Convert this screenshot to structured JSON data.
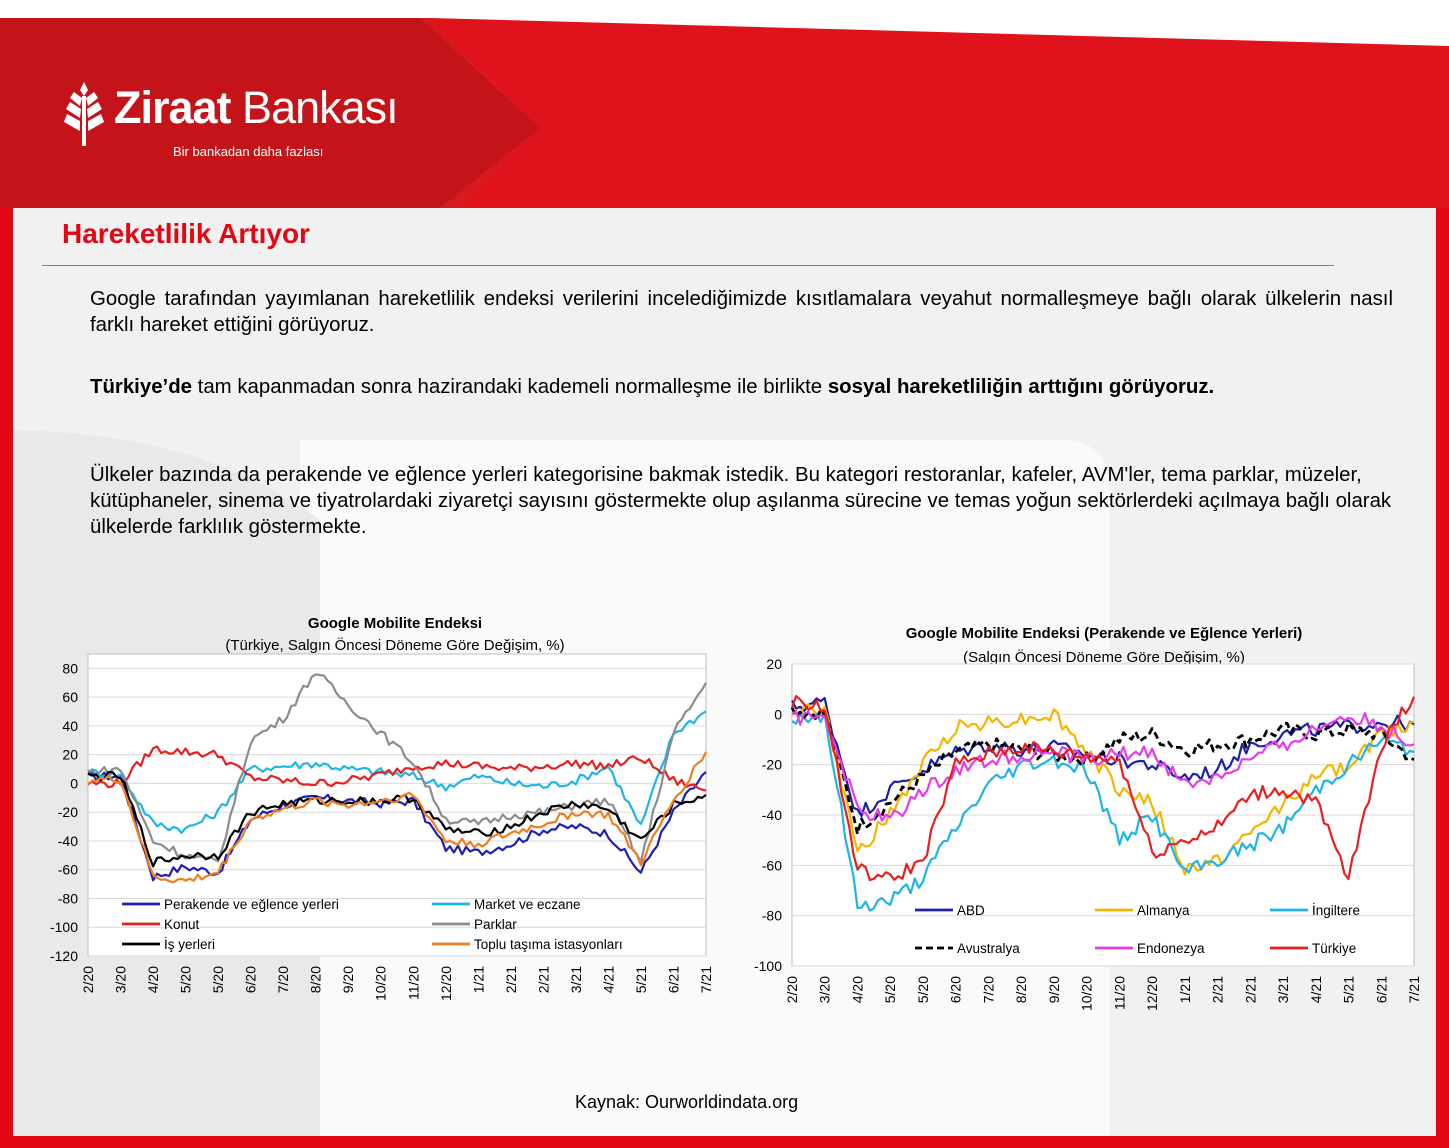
{
  "brand": {
    "name_bold": "Ziraat",
    "name_regular": " Bankası",
    "slogan": "Bir bankadan daha fazlası",
    "primary_color": "#e30613",
    "logo_icon": "wheat-icon"
  },
  "page": {
    "title": "Hareketlilik Artıyor",
    "paragraph1": "Google tarafından yayımlanan hareketlilik endeksi verilerini incelediğimizde kısıtlamalara veyahut normalleşmeye bağlı olarak ülkelerin nasıl farklı hareket ettiğini görüyoruz.",
    "paragraph2_bold1": "Türkiye’de",
    "paragraph2_text": " tam kapanmadan sonra hazirandaki kademeli normalleşme ile birlikte ",
    "paragraph2_bold2": "sosyal hareketliliğin arttığını görüyoruz.",
    "paragraph3": "Ülkeler bazında da perakende ve eğlence yerleri kategorisine bakmak istedik. Bu kategori restoranlar, kafeler, AVM'ler, tema parklar, müzeler, kütüphaneler, sinema ve tiyatrolardaki ziyaretçi sayısını göstermekte olup aşılanma sürecine ve temas yoğun sektörlerdeki açılmaya bağlı olarak ülkelerde farklılık göstermekte.",
    "source": "Kaynak: Ourworldindata.org"
  },
  "chart_data": [
    {
      "type": "line",
      "title": "Google Mobilite Endeksi",
      "subtitle": "(Türkiye, Salgın Öncesi Döneme Göre Değişim, %)",
      "ylim": [
        -120,
        90
      ],
      "yticks": [
        80,
        60,
        40,
        20,
        0,
        -20,
        -40,
        -60,
        -80,
        -100,
        -120
      ],
      "x": [
        "2/20",
        "3/20",
        "4/20",
        "5/20",
        "5/20",
        "6/20",
        "7/20",
        "8/20",
        "9/20",
        "10/20",
        "11/20",
        "12/20",
        "1/21",
        "2/21",
        "2/21",
        "3/21",
        "4/21",
        "5/21",
        "6/21",
        "7/21"
      ],
      "legend_placement": "bottom-left-inside",
      "series": [
        {
          "name": "Perakende ve eğlence yerleri",
          "color": "#1f1fb4",
          "dash": false,
          "values": [
            5,
            5,
            -65,
            -58,
            -62,
            -25,
            -15,
            -10,
            -12,
            -14,
            -12,
            -45,
            -48,
            -42,
            -32,
            -30,
            -35,
            -62,
            -20,
            8
          ]
        },
        {
          "name": "Market ve eczane",
          "color": "#1fb4e8",
          "dash": false,
          "values": [
            8,
            6,
            -28,
            -32,
            -20,
            10,
            12,
            14,
            10,
            8,
            5,
            -2,
            5,
            0,
            -2,
            2,
            12,
            -30,
            35,
            50
          ]
        },
        {
          "name": "Konut",
          "color": "#e81f1f",
          "dash": false,
          "values": [
            0,
            0,
            24,
            22,
            20,
            4,
            2,
            0,
            2,
            6,
            12,
            14,
            12,
            10,
            12,
            14,
            12,
            18,
            2,
            -5
          ]
        },
        {
          "name": "Parklar",
          "color": "#8c8c8c",
          "dash": false,
          "values": [
            8,
            10,
            -40,
            -50,
            -55,
            30,
            45,
            78,
            55,
            35,
            15,
            -25,
            -28,
            -22,
            -20,
            -15,
            -12,
            -55,
            35,
            70
          ]
        },
        {
          "name": "İş yerleri",
          "color": "#000000",
          "dash": false,
          "values": [
            5,
            5,
            -55,
            -50,
            -50,
            -20,
            -14,
            -12,
            -12,
            -12,
            -10,
            -32,
            -35,
            -30,
            -20,
            -14,
            -18,
            -40,
            -15,
            -8
          ]
        },
        {
          "name": "Toplu taşıma istasyonları",
          "color": "#ef7d22",
          "dash": false,
          "values": [
            2,
            3,
            -65,
            -68,
            -62,
            -25,
            -18,
            -12,
            -15,
            -12,
            -8,
            -40,
            -42,
            -35,
            -28,
            -20,
            -22,
            -55,
            -12,
            22
          ]
        }
      ]
    },
    {
      "type": "line",
      "title": "Google Mobilite Endeksi (Perakende ve Eğlence Yerleri)",
      "subtitle": "(Salgın Öncesi Döneme Göre Değişim, %)",
      "ylim": [
        -100,
        20
      ],
      "yticks": [
        20,
        0,
        -20,
        -40,
        -60,
        -80,
        -100
      ],
      "x": [
        "2/20",
        "3/20",
        "4/20",
        "5/20",
        "5/20",
        "6/20",
        "7/20",
        "8/20",
        "9/20",
        "10/20",
        "11/20",
        "12/20",
        "1/21",
        "2/21",
        "2/21",
        "3/21",
        "4/21",
        "5/21",
        "6/21",
        "7/21"
      ],
      "legend_placement": "bottom-inside",
      "series": [
        {
          "name": "ABD",
          "color": "#1f1fa8",
          "dash": false,
          "values": [
            3,
            5,
            -40,
            -30,
            -22,
            -15,
            -12,
            -14,
            -13,
            -16,
            -18,
            -20,
            -25,
            -22,
            -12,
            -8,
            -6,
            -5,
            -3,
            -4
          ]
        },
        {
          "name": "Almanya",
          "color": "#f5b400",
          "dash": false,
          "values": [
            2,
            2,
            -55,
            -40,
            -20,
            -5,
            -3,
            -2,
            0,
            -15,
            -30,
            -35,
            -62,
            -58,
            -48,
            -35,
            -25,
            -20,
            -8,
            -3
          ]
        },
        {
          "name": "İngiltere",
          "color": "#1fb4e8",
          "dash": false,
          "values": [
            -2,
            0,
            -76,
            -74,
            -65,
            -45,
            -28,
            -20,
            -18,
            -22,
            -50,
            -40,
            -63,
            -58,
            -52,
            -45,
            -30,
            -20,
            -10,
            -15
          ]
        },
        {
          "name": "Avustralya",
          "color": "#000000",
          "dash": true,
          "values": [
            2,
            0,
            -45,
            -35,
            -25,
            -15,
            -12,
            -14,
            -16,
            -18,
            -10,
            -8,
            -14,
            -12,
            -10,
            -6,
            -8,
            -6,
            -8,
            -18
          ]
        },
        {
          "name": "Endonezya",
          "color": "#e83be8",
          "dash": false,
          "values": [
            -2,
            0,
            -38,
            -42,
            -30,
            -22,
            -18,
            -16,
            -15,
            -18,
            -16,
            -15,
            -28,
            -25,
            -18,
            -12,
            -6,
            0,
            -5,
            -12
          ]
        },
        {
          "name": "Türkiye",
          "color": "#e81f1f",
          "dash": false,
          "values": [
            5,
            3,
            -62,
            -66,
            -58,
            -20,
            -16,
            -13,
            -15,
            -17,
            -18,
            -55,
            -50,
            -45,
            -32,
            -30,
            -35,
            -66,
            -12,
            7
          ]
        }
      ]
    }
  ]
}
